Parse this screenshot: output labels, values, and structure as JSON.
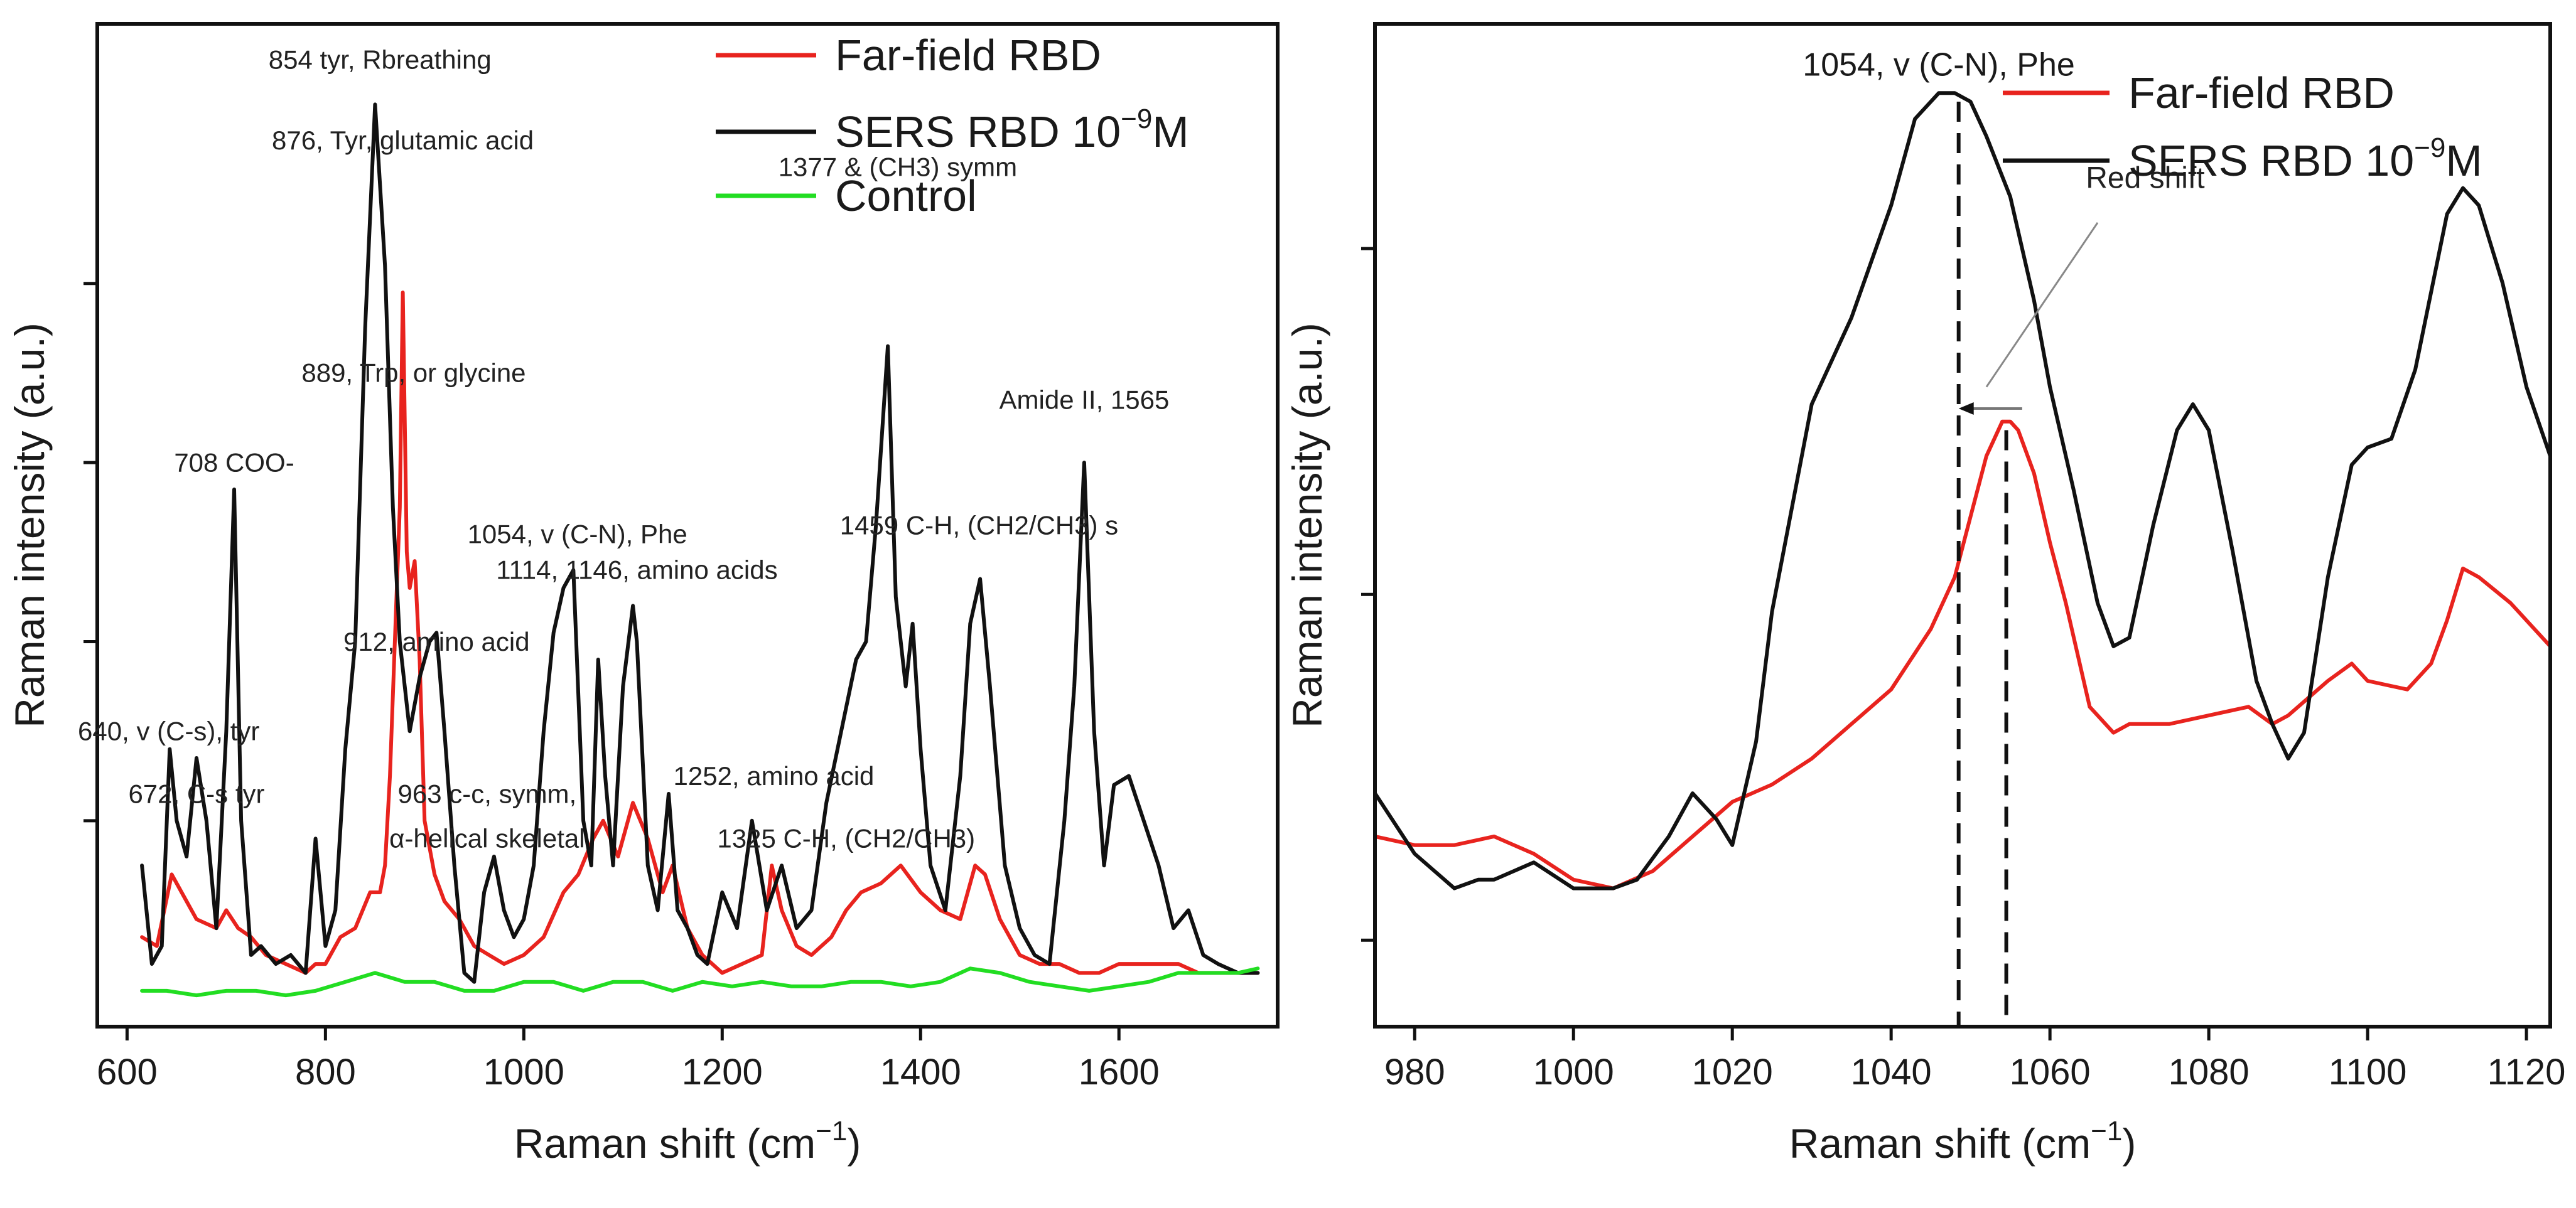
{
  "chart_data": [
    {
      "type": "line",
      "panel": "left",
      "xlabel": "Raman shift (cm−1)",
      "ylabel": "Raman intensity (a.u.)",
      "xlim": [
        570,
        1760
      ],
      "ylim": [
        -0.03,
        1.09
      ],
      "xticks": [
        600,
        800,
        1000,
        1200,
        1400,
        1600
      ],
      "yticks": [
        0.2,
        0.4,
        0.6,
        0.8
      ],
      "legend_position": "top-right",
      "series": [
        {
          "name": "Far-field RBD",
          "color": "#e8231e",
          "x": [
            615,
            630,
            645,
            655,
            670,
            690,
            700,
            712,
            725,
            740,
            760,
            780,
            790,
            800,
            815,
            830,
            845,
            855,
            860,
            865,
            870,
            875,
            878,
            882,
            885,
            890,
            895,
            900,
            910,
            920,
            935,
            950,
            965,
            980,
            1000,
            1020,
            1040,
            1055,
            1070,
            1080,
            1095,
            1110,
            1125,
            1140,
            1150,
            1165,
            1180,
            1200,
            1220,
            1240,
            1250,
            1260,
            1275,
            1290,
            1310,
            1325,
            1340,
            1360,
            1380,
            1400,
            1420,
            1440,
            1455,
            1465,
            1480,
            1500,
            1520,
            1540,
            1560,
            1580,
            1600,
            1620,
            1640,
            1660,
            1680,
            1700,
            1720,
            1740
          ],
          "values": [
            0.07,
            0.06,
            0.14,
            0.12,
            0.09,
            0.08,
            0.1,
            0.08,
            0.07,
            0.05,
            0.04,
            0.03,
            0.04,
            0.04,
            0.07,
            0.08,
            0.12,
            0.12,
            0.15,
            0.25,
            0.4,
            0.55,
            0.79,
            0.5,
            0.46,
            0.49,
            0.38,
            0.2,
            0.14,
            0.11,
            0.09,
            0.06,
            0.05,
            0.04,
            0.05,
            0.07,
            0.12,
            0.14,
            0.18,
            0.2,
            0.16,
            0.22,
            0.18,
            0.12,
            0.15,
            0.08,
            0.05,
            0.03,
            0.04,
            0.05,
            0.15,
            0.1,
            0.06,
            0.05,
            0.07,
            0.1,
            0.12,
            0.13,
            0.15,
            0.12,
            0.1,
            0.09,
            0.15,
            0.14,
            0.09,
            0.05,
            0.04,
            0.04,
            0.03,
            0.03,
            0.04,
            0.04,
            0.04,
            0.04,
            0.03,
            0.03,
            0.03,
            0.03
          ]
        },
        {
          "name": "SERS RBD 10−9M",
          "color": "#111111",
          "x": [
            615,
            625,
            635,
            643,
            650,
            660,
            670,
            680,
            690,
            700,
            708,
            715,
            725,
            735,
            750,
            765,
            780,
            790,
            800,
            810,
            820,
            830,
            840,
            850,
            860,
            868,
            875,
            880,
            885,
            895,
            905,
            912,
            920,
            930,
            940,
            950,
            960,
            970,
            980,
            990,
            1000,
            1010,
            1020,
            1030,
            1040,
            1050,
            1060,
            1068,
            1075,
            1082,
            1090,
            1100,
            1110,
            1114,
            1125,
            1135,
            1146,
            1155,
            1165,
            1175,
            1185,
            1200,
            1215,
            1230,
            1245,
            1260,
            1275,
            1290,
            1305,
            1320,
            1335,
            1345,
            1355,
            1367,
            1375,
            1385,
            1392,
            1400,
            1410,
            1425,
            1440,
            1450,
            1460,
            1470,
            1485,
            1500,
            1515,
            1530,
            1545,
            1555,
            1565,
            1575,
            1585,
            1595,
            1610,
            1625,
            1640,
            1655,
            1670,
            1685,
            1700,
            1720,
            1740
          ],
          "values": [
            0.15,
            0.04,
            0.06,
            0.28,
            0.2,
            0.16,
            0.27,
            0.2,
            0.08,
            0.3,
            0.57,
            0.2,
            0.05,
            0.06,
            0.04,
            0.05,
            0.03,
            0.18,
            0.06,
            0.1,
            0.28,
            0.4,
            0.75,
            1.0,
            0.82,
            0.55,
            0.4,
            0.35,
            0.3,
            0.36,
            0.4,
            0.41,
            0.3,
            0.15,
            0.03,
            0.02,
            0.12,
            0.16,
            0.1,
            0.07,
            0.09,
            0.15,
            0.3,
            0.41,
            0.46,
            0.48,
            0.2,
            0.15,
            0.38,
            0.25,
            0.15,
            0.35,
            0.44,
            0.4,
            0.15,
            0.1,
            0.23,
            0.1,
            0.08,
            0.05,
            0.04,
            0.12,
            0.08,
            0.2,
            0.1,
            0.15,
            0.08,
            0.1,
            0.22,
            0.3,
            0.38,
            0.4,
            0.53,
            0.73,
            0.45,
            0.35,
            0.42,
            0.28,
            0.15,
            0.1,
            0.25,
            0.42,
            0.47,
            0.35,
            0.15,
            0.08,
            0.05,
            0.04,
            0.2,
            0.35,
            0.6,
            0.3,
            0.15,
            0.24,
            0.25,
            0.2,
            0.15,
            0.08,
            0.1,
            0.05,
            0.04,
            0.03,
            0.03
          ]
        },
        {
          "name": "Control",
          "color": "#22dd22",
          "x": [
            615,
            640,
            670,
            700,
            730,
            760,
            790,
            820,
            850,
            880,
            910,
            940,
            970,
            1000,
            1030,
            1060,
            1090,
            1120,
            1150,
            1180,
            1210,
            1240,
            1270,
            1300,
            1330,
            1360,
            1390,
            1420,
            1450,
            1480,
            1510,
            1540,
            1570,
            1600,
            1630,
            1660,
            1690,
            1720,
            1740
          ],
          "values": [
            0.01,
            0.01,
            0.005,
            0.01,
            0.01,
            0.005,
            0.01,
            0.02,
            0.03,
            0.02,
            0.02,
            0.01,
            0.01,
            0.02,
            0.02,
            0.01,
            0.02,
            0.02,
            0.01,
            0.02,
            0.015,
            0.02,
            0.015,
            0.015,
            0.02,
            0.02,
            0.015,
            0.02,
            0.035,
            0.03,
            0.02,
            0.015,
            0.01,
            0.015,
            0.02,
            0.03,
            0.03,
            0.03,
            0.035
          ]
        }
      ],
      "annotations": [
        {
          "text": "640, v (C-s), tyr",
          "x": 642,
          "y": 0.29
        },
        {
          "text": "708 COO-",
          "x": 708,
          "y": 0.59
        },
        {
          "text": "672, C-s tyr",
          "x": 670,
          "y": 0.22
        },
        {
          "text": "854 tyr, Rbreathing",
          "x": 855,
          "y": 1.04
        },
        {
          "text": "876, Tyr, glutamic acid",
          "x": 878,
          "y": 0.95
        },
        {
          "text": "889, Trp, or glycine",
          "x": 889,
          "y": 0.69
        },
        {
          "text": "912, amino acid",
          "x": 912,
          "y": 0.39
        },
        {
          "text": "963 c-c, symm,",
          "x": 963,
          "y": 0.22
        },
        {
          "text": "α-helical skeletal",
          "x": 963,
          "y": 0.17
        },
        {
          "text": "1054, v (C-N), Phe",
          "x": 1054,
          "y": 0.51
        },
        {
          "text": "1114, 1146, amino acids",
          "x": 1114,
          "y": 0.47
        },
        {
          "text": "1377 & (CH3) symm",
          "x": 1377,
          "y": 0.92
        },
        {
          "text": "1252, amino acid",
          "x": 1252,
          "y": 0.24
        },
        {
          "text": "1325 C-H, (CH2/CH3)",
          "x": 1325,
          "y": 0.17
        },
        {
          "text": "1459 C-H, (CH2/CH3) s",
          "x": 1459,
          "y": 0.52
        },
        {
          "text": "Amide II, 1565",
          "x": 1565,
          "y": 0.66
        }
      ]
    },
    {
      "type": "line",
      "panel": "right",
      "xlabel": "Raman shift (cm−1)",
      "ylabel": "Raman intensity (a.u.)",
      "xlim": [
        975,
        1123
      ],
      "ylim": [
        0.0,
        1.16
      ],
      "xticks": [
        980,
        1000,
        1020,
        1040,
        1060,
        1080,
        1100,
        1120
      ],
      "yticks": [
        0.1,
        0.5,
        0.9
      ],
      "legend_position": "top-right",
      "series": [
        {
          "name": "Far-field RBD",
          "color": "#e8231e",
          "x": [
            975,
            980,
            985,
            990,
            995,
            1000,
            1005,
            1010,
            1015,
            1020,
            1025,
            1030,
            1035,
            1040,
            1045,
            1048,
            1050,
            1052,
            1054,
            1055,
            1056,
            1058,
            1060,
            1062,
            1065,
            1068,
            1070,
            1075,
            1080,
            1085,
            1088,
            1090,
            1095,
            1098,
            1100,
            1105,
            1108,
            1110,
            1112,
            1114,
            1118,
            1123
          ],
          "values": [
            0.22,
            0.21,
            0.21,
            0.22,
            0.2,
            0.17,
            0.16,
            0.18,
            0.22,
            0.26,
            0.28,
            0.31,
            0.35,
            0.39,
            0.46,
            0.52,
            0.59,
            0.66,
            0.7,
            0.7,
            0.69,
            0.64,
            0.56,
            0.49,
            0.37,
            0.34,
            0.35,
            0.35,
            0.36,
            0.37,
            0.35,
            0.36,
            0.4,
            0.42,
            0.4,
            0.39,
            0.42,
            0.47,
            0.53,
            0.52,
            0.49,
            0.44
          ]
        },
        {
          "name": "SERS RBD 10−9M",
          "color": "#111111",
          "x": [
            975,
            980,
            985,
            988,
            990,
            995,
            1000,
            1005,
            1008,
            1012,
            1015,
            1018,
            1020,
            1023,
            1025,
            1030,
            1035,
            1040,
            1043,
            1046,
            1048,
            1050,
            1052,
            1055,
            1058,
            1060,
            1063,
            1066,
            1068,
            1070,
            1073,
            1076,
            1078,
            1080,
            1083,
            1086,
            1088,
            1090,
            1092,
            1095,
            1098,
            1100,
            1103,
            1106,
            1108,
            1110,
            1112,
            1114,
            1117,
            1120,
            1123
          ],
          "values": [
            0.27,
            0.2,
            0.16,
            0.17,
            0.17,
            0.19,
            0.16,
            0.16,
            0.17,
            0.22,
            0.27,
            0.24,
            0.21,
            0.33,
            0.48,
            0.72,
            0.82,
            0.95,
            1.05,
            1.08,
            1.08,
            1.07,
            1.03,
            0.96,
            0.84,
            0.74,
            0.62,
            0.49,
            0.44,
            0.45,
            0.58,
            0.69,
            0.72,
            0.69,
            0.55,
            0.4,
            0.35,
            0.31,
            0.34,
            0.52,
            0.65,
            0.67,
            0.68,
            0.76,
            0.85,
            0.94,
            0.97,
            0.95,
            0.86,
            0.74,
            0.66
          ]
        }
      ],
      "annotations": [
        {
          "text": "1054, v (C-N), Phe",
          "x": 1046,
          "y": 1.1
        },
        {
          "text": "Red shift",
          "x": 1072,
          "y": 0.97
        }
      ],
      "vlines": [
        1048.5,
        1054.5
      ]
    }
  ],
  "legend": {
    "left": [
      "Far-field RBD",
      "SERS RBD 10",
      "−9",
      "M",
      "Control"
    ],
    "right": [
      "Far-field RBD",
      "SERS RBD 10",
      "−9",
      "M"
    ]
  },
  "axis_text": {
    "x_main": "Raman shift (cm",
    "x_sup": "−1",
    "x_close": ")",
    "y_main": "Raman intensity (a.u.)"
  }
}
